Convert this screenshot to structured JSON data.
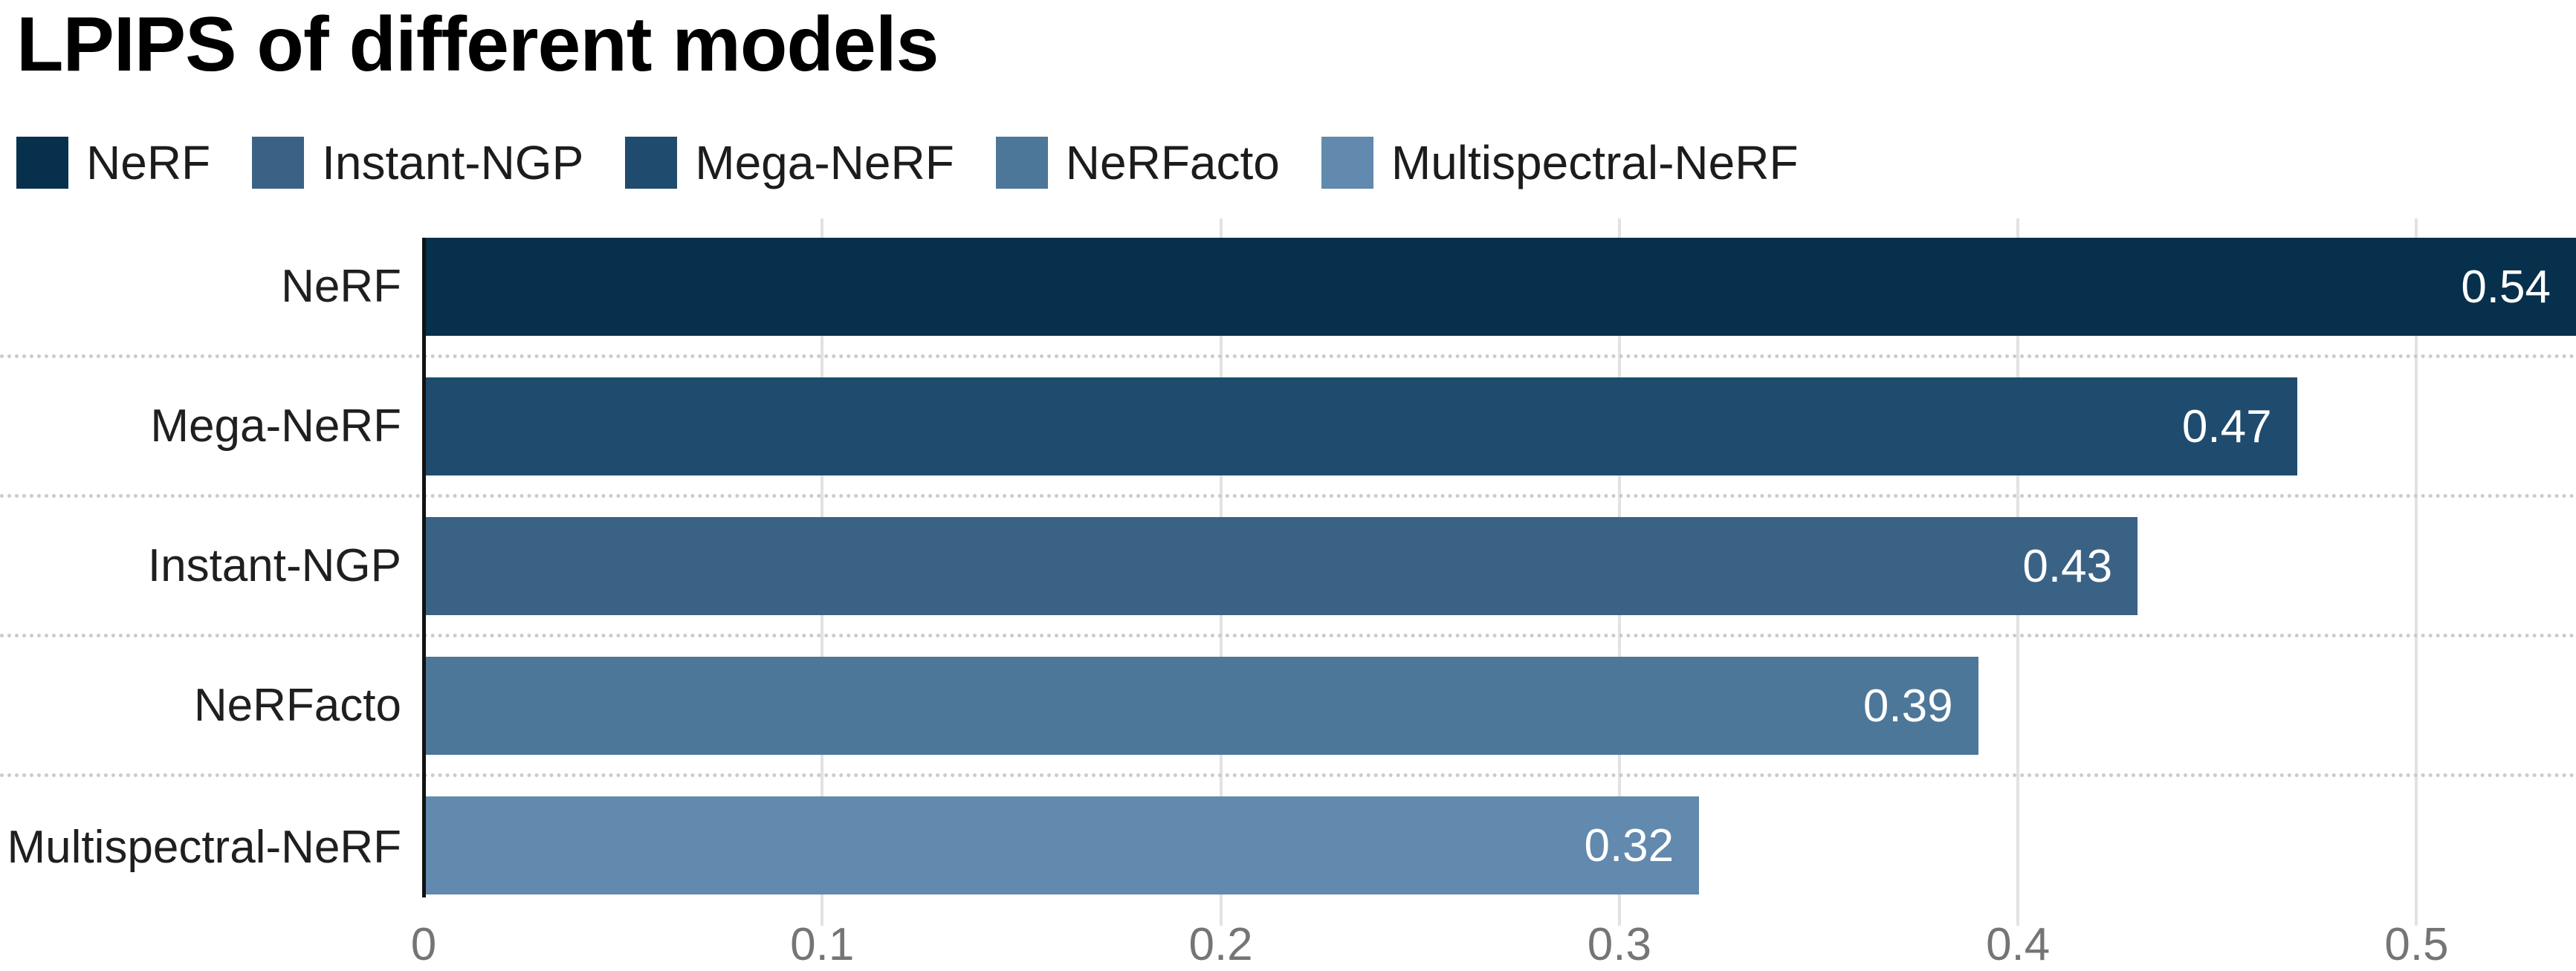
{
  "title": "LPIPS of different models",
  "legend": {
    "position": "top",
    "items": [
      {
        "label": "NeRF",
        "color": "#07304d"
      },
      {
        "label": "Instant-NGP",
        "color": "#3a6285"
      },
      {
        "label": "Mega-NeRF",
        "color": "#1e4b6e"
      },
      {
        "label": "NeRFacto",
        "color": "#4d7799"
      },
      {
        "label": "Multispectral-NeRF",
        "color": "#6289ae"
      }
    ]
  },
  "chart_data": {
    "type": "bar",
    "orientation": "horizontal",
    "title": "LPIPS of different models",
    "categories": [
      "NeRF",
      "Mega-NeRF",
      "Instant-NGP",
      "NeRFacto",
      "Multispectral-NeRF"
    ],
    "values": [
      0.54,
      0.47,
      0.43,
      0.39,
      0.32
    ],
    "value_labels": [
      "0.54",
      "0.47",
      "0.43",
      "0.39",
      "0.32"
    ],
    "bar_colors": [
      "#07304d",
      "#1e4b6e",
      "#3a6285",
      "#4d7799",
      "#6289ae"
    ],
    "xlabel": "",
    "ylabel": "",
    "xlim": [
      0,
      0.54
    ],
    "x_ticks": [
      "0",
      "0.1",
      "0.2",
      "0.3",
      "0.4",
      "0.5"
    ],
    "x_tick_values": [
      0,
      0.1,
      0.2,
      0.3,
      0.4,
      0.5
    ],
    "grid": "vertical gridlines + dotted row separators",
    "legend_position": "top",
    "value_label_color": "#ffffff",
    "axis_line_color": "#121212",
    "gridline_color": "#e2e2e2",
    "separator_color": "#cbcbcb",
    "tick_label_color": "#757575",
    "category_label_color": "#1f1f1f"
  }
}
